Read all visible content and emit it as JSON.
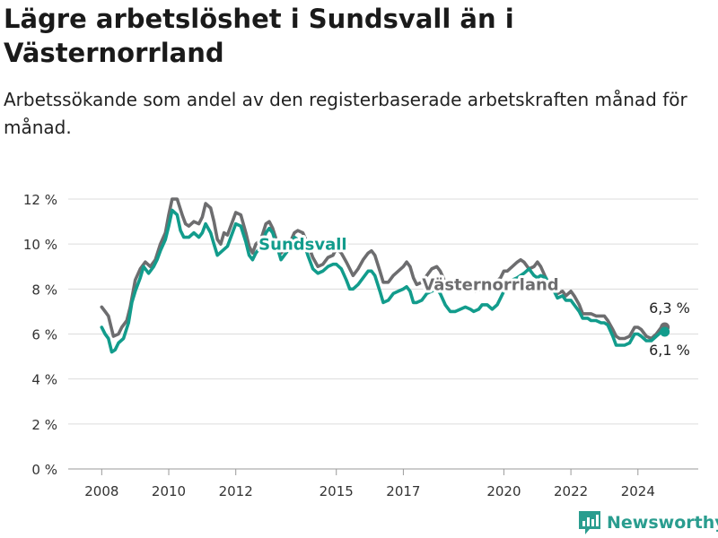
{
  "header": {
    "title": "Lägre arbetslöshet i Sundsvall än i Västernorrland",
    "subtitle": "Arbetssökande som andel av den registerbaserade arbetskraften månad för månad."
  },
  "brand": {
    "name": "Newsworthy",
    "color": "#2a9d8f"
  },
  "chart_data": {
    "type": "line",
    "title": "Lägre arbetslöshet i Sundsvall än i Västernorrland",
    "subtitle": "Arbetssökande som andel av den registerbaserade arbetskraften månad för månad.",
    "xlabel": "",
    "ylabel": "",
    "xlim": [
      2007.0,
      2025.8
    ],
    "ylim": [
      0,
      12
    ],
    "x_ticks": [
      2008,
      2010,
      2012,
      2015,
      2017,
      2020,
      2022,
      2024
    ],
    "x_tick_labels": [
      "2008",
      "2010",
      "2012",
      "2015",
      "2017",
      "2020",
      "2022",
      "2024"
    ],
    "y_ticks": [
      0,
      2,
      4,
      6,
      8,
      10,
      12
    ],
    "y_tick_labels": [
      "0 %",
      "2 %",
      "4 %",
      "6 %",
      "8 %",
      "10 %",
      "12 %"
    ],
    "grid": true,
    "legend": "inline labels",
    "series": [
      {
        "name": "Västernorrland",
        "color": "#6d6d6f",
        "end_label": "6,3 %",
        "points": [
          [
            2008.0,
            7.2
          ],
          [
            2008.1,
            7.0
          ],
          [
            2008.2,
            6.8
          ],
          [
            2008.3,
            6.2
          ],
          [
            2008.35,
            5.9
          ],
          [
            2008.5,
            6.0
          ],
          [
            2008.6,
            6.3
          ],
          [
            2008.75,
            6.6
          ],
          [
            2008.85,
            7.2
          ],
          [
            2009.0,
            8.4
          ],
          [
            2009.15,
            8.9
          ],
          [
            2009.3,
            9.2
          ],
          [
            2009.45,
            9.0
          ],
          [
            2009.6,
            9.3
          ],
          [
            2009.75,
            10.0
          ],
          [
            2009.9,
            10.5
          ],
          [
            2010.0,
            11.3
          ],
          [
            2010.1,
            12.0
          ],
          [
            2010.25,
            12.0
          ],
          [
            2010.4,
            11.3
          ],
          [
            2010.5,
            10.9
          ],
          [
            2010.6,
            10.8
          ],
          [
            2010.75,
            11.0
          ],
          [
            2010.9,
            10.9
          ],
          [
            2011.0,
            11.2
          ],
          [
            2011.1,
            11.8
          ],
          [
            2011.25,
            11.6
          ],
          [
            2011.35,
            11.0
          ],
          [
            2011.45,
            10.2
          ],
          [
            2011.55,
            10.0
          ],
          [
            2011.65,
            10.5
          ],
          [
            2011.75,
            10.4
          ],
          [
            2011.9,
            11.0
          ],
          [
            2012.0,
            11.4
          ],
          [
            2012.15,
            11.3
          ],
          [
            2012.3,
            10.5
          ],
          [
            2012.4,
            9.9
          ],
          [
            2012.5,
            9.6
          ],
          [
            2012.6,
            10.0
          ],
          [
            2012.75,
            10.2
          ],
          [
            2012.9,
            10.9
          ],
          [
            2013.0,
            11.0
          ],
          [
            2013.1,
            10.7
          ],
          [
            2013.25,
            10.0
          ],
          [
            2013.35,
            9.6
          ],
          [
            2013.5,
            9.8
          ],
          [
            2013.6,
            10.0
          ],
          [
            2013.75,
            10.5
          ],
          [
            2013.85,
            10.6
          ],
          [
            2014.0,
            10.5
          ],
          [
            2014.15,
            10.0
          ],
          [
            2014.3,
            9.4
          ],
          [
            2014.45,
            9.0
          ],
          [
            2014.6,
            9.1
          ],
          [
            2014.75,
            9.4
          ],
          [
            2014.9,
            9.5
          ],
          [
            2015.0,
            9.8
          ],
          [
            2015.15,
            9.6
          ],
          [
            2015.3,
            9.2
          ],
          [
            2015.4,
            8.9
          ],
          [
            2015.5,
            8.6
          ],
          [
            2015.65,
            8.9
          ],
          [
            2015.8,
            9.3
          ],
          [
            2015.95,
            9.6
          ],
          [
            2016.05,
            9.7
          ],
          [
            2016.15,
            9.5
          ],
          [
            2016.3,
            8.8
          ],
          [
            2016.4,
            8.3
          ],
          [
            2016.55,
            8.3
          ],
          [
            2016.7,
            8.6
          ],
          [
            2016.85,
            8.8
          ],
          [
            2017.0,
            9.0
          ],
          [
            2017.1,
            9.2
          ],
          [
            2017.2,
            9.0
          ],
          [
            2017.3,
            8.5
          ],
          [
            2017.4,
            8.2
          ],
          [
            2017.55,
            8.3
          ],
          [
            2017.7,
            8.6
          ],
          [
            2017.85,
            8.9
          ],
          [
            2018.0,
            9.0
          ],
          [
            2018.1,
            8.8
          ],
          [
            2018.25,
            8.3
          ],
          [
            2018.4,
            8.2
          ],
          [
            2018.55,
            8.4
          ],
          [
            2018.7,
            8.2
          ],
          [
            2018.85,
            8.0
          ],
          [
            2019.0,
            8.0
          ],
          [
            2019.15,
            7.9
          ],
          [
            2019.3,
            8.0
          ],
          [
            2019.45,
            8.0
          ],
          [
            2019.6,
            8.2
          ],
          [
            2019.75,
            8.3
          ],
          [
            2019.9,
            8.5
          ],
          [
            2020.0,
            8.8
          ],
          [
            2020.1,
            8.8
          ],
          [
            2020.25,
            9.0
          ],
          [
            2020.4,
            9.2
          ],
          [
            2020.5,
            9.3
          ],
          [
            2020.6,
            9.2
          ],
          [
            2020.75,
            8.9
          ],
          [
            2020.9,
            9.0
          ],
          [
            2021.0,
            9.2
          ],
          [
            2021.1,
            9.0
          ],
          [
            2021.25,
            8.5
          ],
          [
            2021.4,
            8.1
          ],
          [
            2021.5,
            8.0
          ],
          [
            2021.6,
            7.8
          ],
          [
            2021.75,
            7.9
          ],
          [
            2021.85,
            7.7
          ],
          [
            2022.0,
            7.9
          ],
          [
            2022.1,
            7.7
          ],
          [
            2022.25,
            7.3
          ],
          [
            2022.35,
            6.9
          ],
          [
            2022.5,
            6.9
          ],
          [
            2022.6,
            6.9
          ],
          [
            2022.75,
            6.8
          ],
          [
            2022.9,
            6.8
          ],
          [
            2023.0,
            6.8
          ],
          [
            2023.1,
            6.6
          ],
          [
            2023.25,
            6.2
          ],
          [
            2023.35,
            5.9
          ],
          [
            2023.45,
            5.8
          ],
          [
            2023.6,
            5.8
          ],
          [
            2023.75,
            5.9
          ],
          [
            2023.9,
            6.3
          ],
          [
            2024.0,
            6.3
          ],
          [
            2024.1,
            6.2
          ],
          [
            2024.25,
            5.9
          ],
          [
            2024.4,
            5.8
          ],
          [
            2024.55,
            6.0
          ],
          [
            2024.7,
            6.3
          ],
          [
            2024.8,
            6.3
          ]
        ]
      },
      {
        "name": "Sundsvall",
        "color": "#129c8c",
        "end_label": "6,1 %",
        "points": [
          [
            2008.0,
            6.3
          ],
          [
            2008.1,
            6.0
          ],
          [
            2008.2,
            5.8
          ],
          [
            2008.3,
            5.2
          ],
          [
            2008.4,
            5.3
          ],
          [
            2008.5,
            5.6
          ],
          [
            2008.65,
            5.8
          ],
          [
            2008.8,
            6.5
          ],
          [
            2008.9,
            7.4
          ],
          [
            2009.0,
            7.9
          ],
          [
            2009.15,
            8.5
          ],
          [
            2009.25,
            9.0
          ],
          [
            2009.4,
            8.7
          ],
          [
            2009.55,
            9.0
          ],
          [
            2009.65,
            9.3
          ],
          [
            2009.75,
            9.7
          ],
          [
            2009.9,
            10.2
          ],
          [
            2010.0,
            10.8
          ],
          [
            2010.1,
            11.5
          ],
          [
            2010.25,
            11.3
          ],
          [
            2010.35,
            10.6
          ],
          [
            2010.45,
            10.3
          ],
          [
            2010.6,
            10.3
          ],
          [
            2010.75,
            10.5
          ],
          [
            2010.9,
            10.3
          ],
          [
            2011.0,
            10.5
          ],
          [
            2011.1,
            10.9
          ],
          [
            2011.25,
            10.5
          ],
          [
            2011.35,
            10.0
          ],
          [
            2011.45,
            9.5
          ],
          [
            2011.6,
            9.7
          ],
          [
            2011.75,
            9.9
          ],
          [
            2011.9,
            10.5
          ],
          [
            2012.0,
            10.9
          ],
          [
            2012.15,
            10.8
          ],
          [
            2012.3,
            10.1
          ],
          [
            2012.4,
            9.5
          ],
          [
            2012.5,
            9.3
          ],
          [
            2012.6,
            9.6
          ],
          [
            2012.75,
            9.9
          ],
          [
            2012.9,
            10.5
          ],
          [
            2013.0,
            10.7
          ],
          [
            2013.1,
            10.5
          ],
          [
            2013.25,
            9.8
          ],
          [
            2013.35,
            9.3
          ],
          [
            2013.5,
            9.6
          ],
          [
            2013.6,
            9.8
          ],
          [
            2013.75,
            10.3
          ],
          [
            2013.85,
            10.2
          ],
          [
            2014.0,
            10.2
          ],
          [
            2014.15,
            9.5
          ],
          [
            2014.3,
            8.9
          ],
          [
            2014.45,
            8.7
          ],
          [
            2014.6,
            8.8
          ],
          [
            2014.75,
            9.0
          ],
          [
            2014.9,
            9.1
          ],
          [
            2015.0,
            9.1
          ],
          [
            2015.15,
            8.9
          ],
          [
            2015.3,
            8.4
          ],
          [
            2015.4,
            8.0
          ],
          [
            2015.5,
            8.0
          ],
          [
            2015.65,
            8.2
          ],
          [
            2015.8,
            8.5
          ],
          [
            2015.95,
            8.8
          ],
          [
            2016.05,
            8.8
          ],
          [
            2016.15,
            8.6
          ],
          [
            2016.3,
            7.9
          ],
          [
            2016.4,
            7.4
          ],
          [
            2016.55,
            7.5
          ],
          [
            2016.7,
            7.8
          ],
          [
            2016.85,
            7.9
          ],
          [
            2017.0,
            8.0
          ],
          [
            2017.1,
            8.1
          ],
          [
            2017.2,
            7.9
          ],
          [
            2017.3,
            7.4
          ],
          [
            2017.4,
            7.4
          ],
          [
            2017.55,
            7.5
          ],
          [
            2017.7,
            7.8
          ],
          [
            2017.85,
            7.9
          ],
          [
            2018.0,
            8.0
          ],
          [
            2018.1,
            7.8
          ],
          [
            2018.25,
            7.3
          ],
          [
            2018.4,
            7.0
          ],
          [
            2018.55,
            7.0
          ],
          [
            2018.7,
            7.1
          ],
          [
            2018.85,
            7.2
          ],
          [
            2019.0,
            7.1
          ],
          [
            2019.1,
            7.0
          ],
          [
            2019.25,
            7.1
          ],
          [
            2019.35,
            7.3
          ],
          [
            2019.5,
            7.3
          ],
          [
            2019.65,
            7.1
          ],
          [
            2019.8,
            7.3
          ],
          [
            2019.9,
            7.6
          ],
          [
            2020.0,
            7.9
          ],
          [
            2020.1,
            8.1
          ],
          [
            2020.25,
            8.4
          ],
          [
            2020.4,
            8.5
          ],
          [
            2020.5,
            8.6
          ],
          [
            2020.6,
            8.7
          ],
          [
            2020.75,
            8.9
          ],
          [
            2020.9,
            8.6
          ],
          [
            2021.0,
            8.5
          ],
          [
            2021.1,
            8.6
          ],
          [
            2021.25,
            8.5
          ],
          [
            2021.4,
            8.0
          ],
          [
            2021.5,
            7.9
          ],
          [
            2021.6,
            7.6
          ],
          [
            2021.75,
            7.7
          ],
          [
            2021.85,
            7.5
          ],
          [
            2022.0,
            7.5
          ],
          [
            2022.1,
            7.3
          ],
          [
            2022.25,
            7.0
          ],
          [
            2022.35,
            6.7
          ],
          [
            2022.5,
            6.7
          ],
          [
            2022.6,
            6.6
          ],
          [
            2022.75,
            6.6
          ],
          [
            2022.9,
            6.5
          ],
          [
            2023.0,
            6.5
          ],
          [
            2023.1,
            6.4
          ],
          [
            2023.25,
            5.9
          ],
          [
            2023.35,
            5.5
          ],
          [
            2023.45,
            5.5
          ],
          [
            2023.6,
            5.5
          ],
          [
            2023.75,
            5.6
          ],
          [
            2023.9,
            6.0
          ],
          [
            2024.0,
            6.0
          ],
          [
            2024.1,
            5.9
          ],
          [
            2024.25,
            5.7
          ],
          [
            2024.4,
            5.7
          ],
          [
            2024.55,
            5.9
          ],
          [
            2024.7,
            6.1
          ],
          [
            2024.8,
            6.1
          ]
        ]
      }
    ]
  }
}
